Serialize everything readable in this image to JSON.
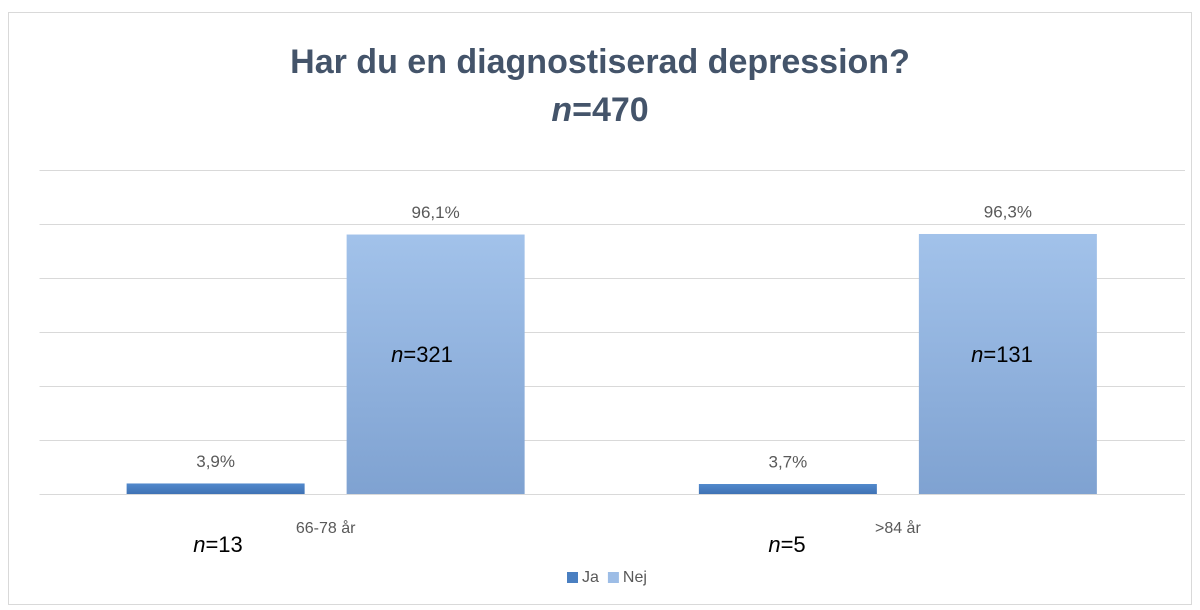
{
  "chart_data": {
    "type": "bar",
    "title": "Har du en diagnostiserad depression?",
    "subtitle": "n=470",
    "categories": [
      "66-78 år",
      ">84 år"
    ],
    "series": [
      {
        "name": "Ja",
        "color": "#4a7fc1",
        "values": [
          3.9,
          3.7
        ],
        "value_labels": [
          "3,9%",
          "3,7%"
        ]
      },
      {
        "name": "Nej",
        "color": "#9dbde6",
        "values": [
          96.1,
          96.3
        ],
        "value_labels": [
          "96,1%",
          "96,3%"
        ]
      }
    ],
    "annotations": [
      "n=13",
      "n=321",
      "n=5",
      "n=131"
    ],
    "ylim": [
      0,
      120
    ],
    "yticks": [
      0,
      20,
      40,
      60,
      80,
      100,
      120
    ],
    "grid": true,
    "legend": "bottom"
  }
}
